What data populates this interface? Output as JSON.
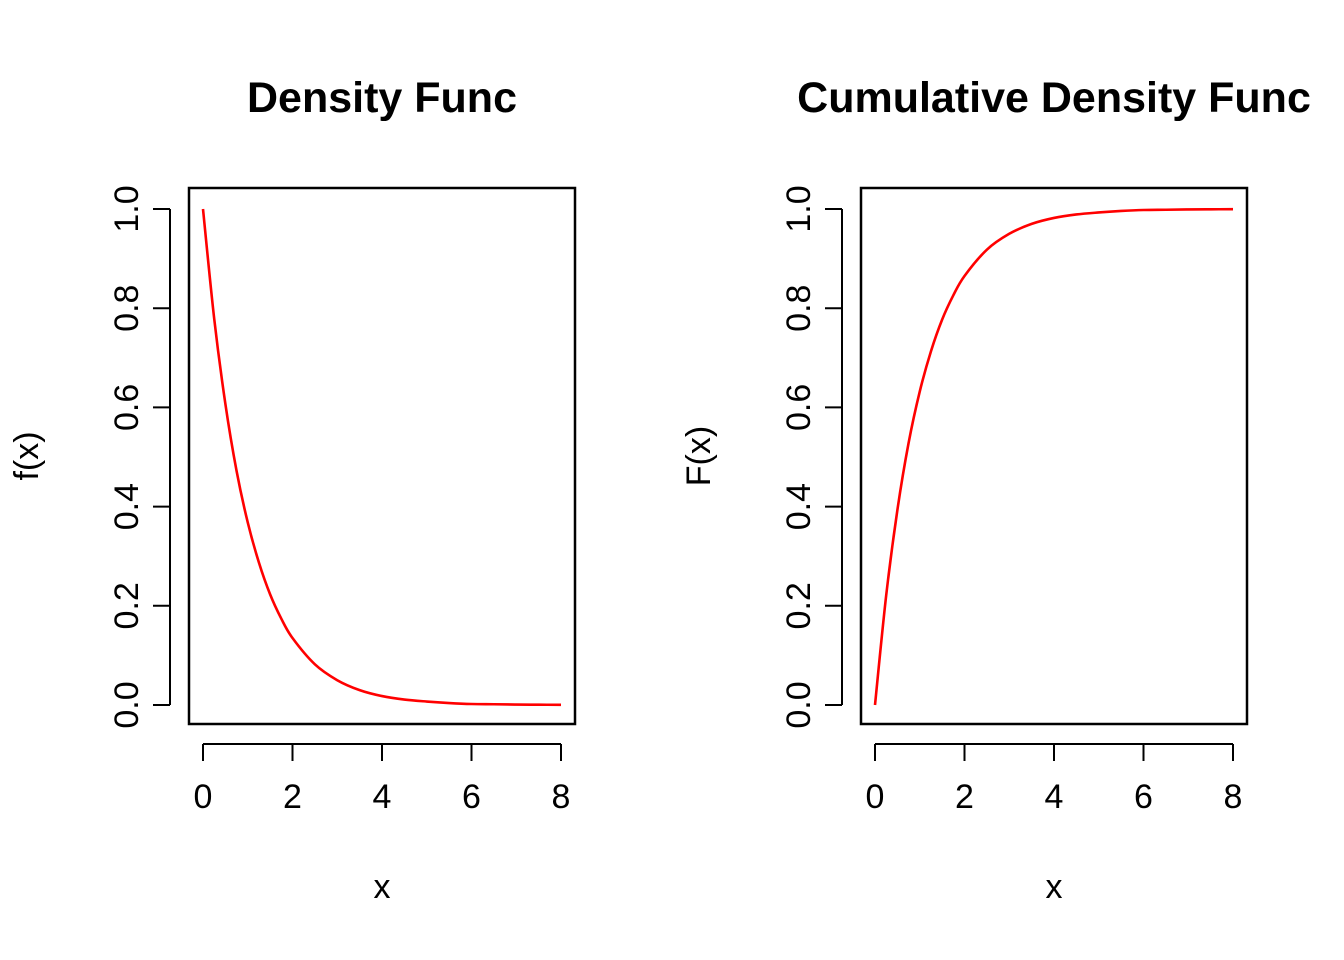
{
  "chart_data": [
    {
      "type": "line",
      "title": "Density Func",
      "xlabel": "x",
      "ylabel": "f(x)",
      "xlim": [
        0,
        8
      ],
      "ylim": [
        0,
        1
      ],
      "x_ticks": [
        "0",
        "2",
        "4",
        "6",
        "8"
      ],
      "y_ticks": [
        "0.0",
        "0.2",
        "0.4",
        "0.6",
        "0.8",
        "1.0"
      ],
      "grid": false,
      "series": [
        {
          "color": "#ff0000",
          "x": [
            0,
            0.25,
            0.5,
            0.75,
            1,
            1.25,
            1.5,
            1.75,
            2,
            2.5,
            3,
            3.5,
            4,
            4.5,
            5,
            5.5,
            6,
            6.5,
            7,
            7.5,
            8
          ],
          "y": [
            1.0,
            0.779,
            0.607,
            0.472,
            0.368,
            0.287,
            0.223,
            0.174,
            0.135,
            0.082,
            0.05,
            0.03,
            0.018,
            0.011,
            0.007,
            0.004,
            0.002,
            0.0015,
            0.0009,
            0.0006,
            0.0003
          ]
        }
      ]
    },
    {
      "type": "line",
      "title": "Cumulative Density Func",
      "xlabel": "x",
      "ylabel": "F(x)",
      "xlim": [
        0,
        8
      ],
      "ylim": [
        0,
        1
      ],
      "x_ticks": [
        "0",
        "2",
        "4",
        "6",
        "8"
      ],
      "y_ticks": [
        "0.0",
        "0.2",
        "0.4",
        "0.6",
        "0.8",
        "1.0"
      ],
      "grid": false,
      "series": [
        {
          "color": "#ff0000",
          "x": [
            0,
            0.25,
            0.5,
            0.75,
            1,
            1.25,
            1.5,
            1.75,
            2,
            2.5,
            3,
            3.5,
            4,
            4.5,
            5,
            5.5,
            6,
            6.5,
            7,
            7.5,
            8
          ],
          "y": [
            0.0,
            0.221,
            0.393,
            0.528,
            0.632,
            0.713,
            0.777,
            0.826,
            0.865,
            0.918,
            0.95,
            0.97,
            0.982,
            0.989,
            0.993,
            0.996,
            0.998,
            0.9985,
            0.9991,
            0.9994,
            0.9997
          ]
        }
      ]
    }
  ]
}
